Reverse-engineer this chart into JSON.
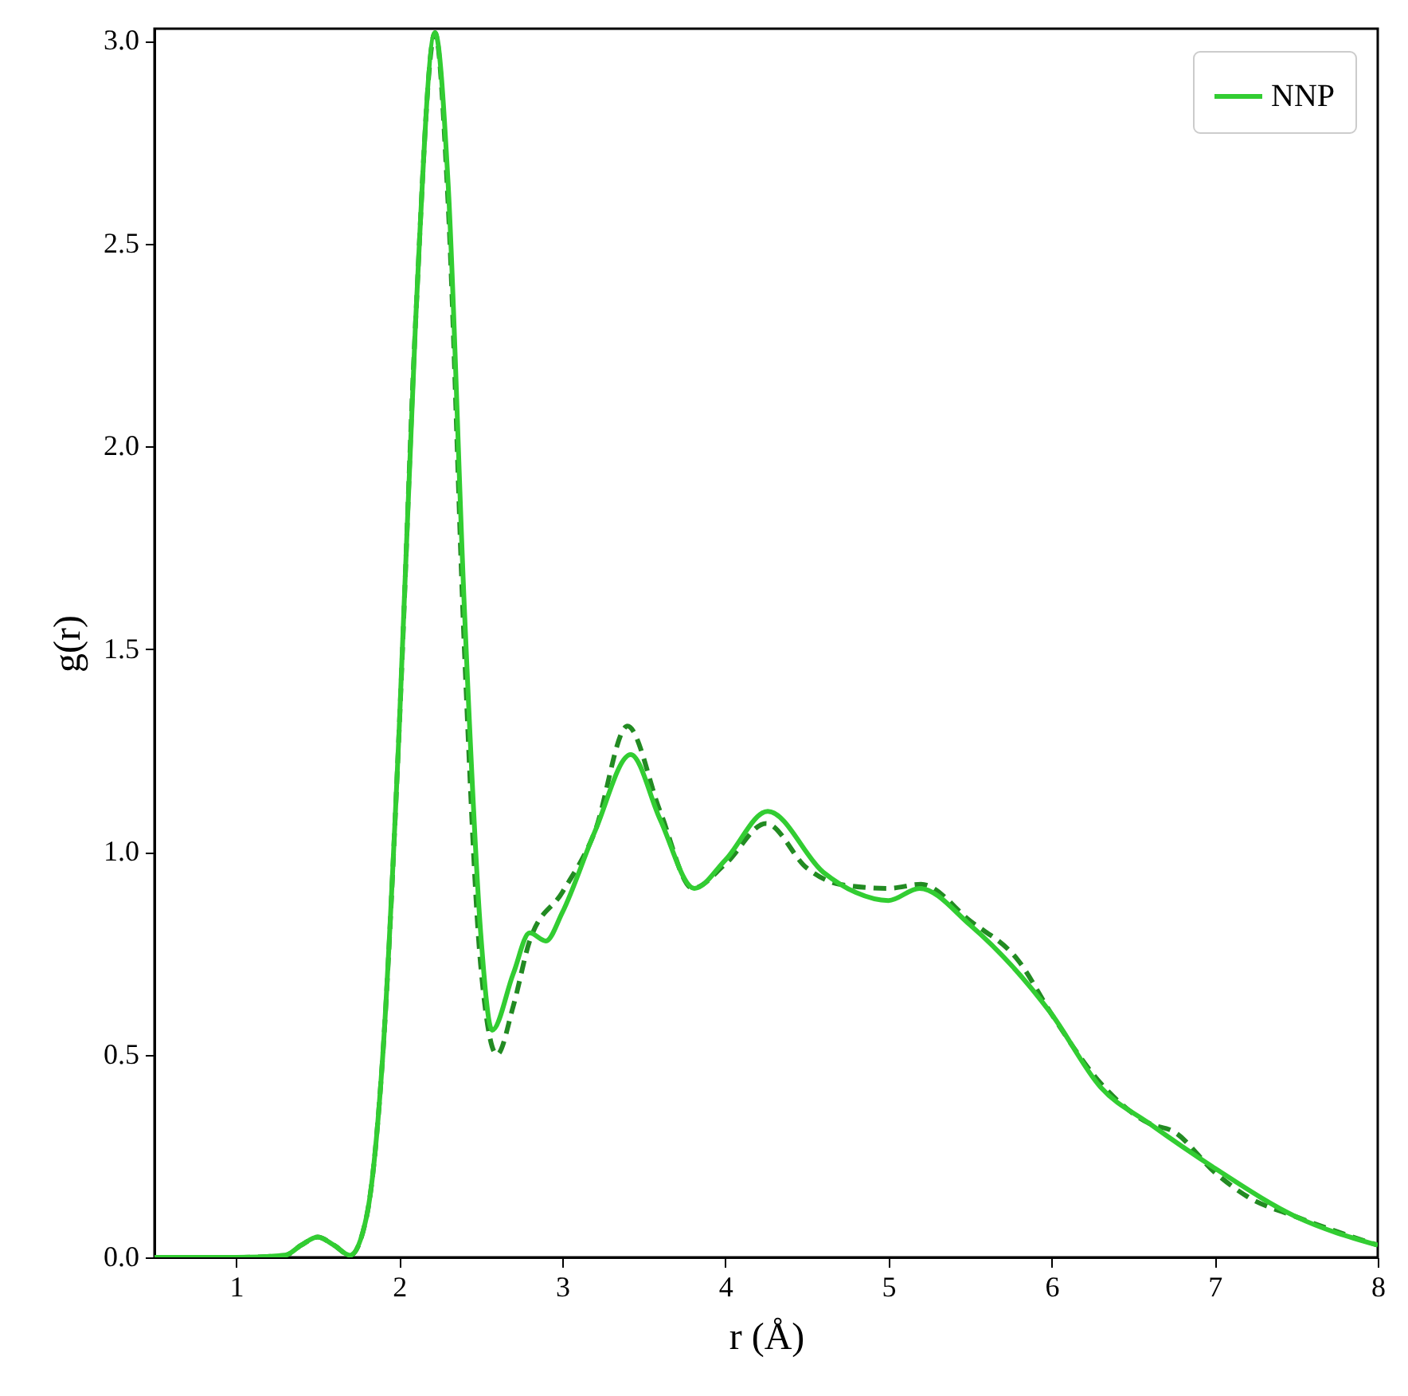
{
  "chart_data": {
    "type": "line",
    "xlabel": "r (Å)",
    "ylabel": "g(r)",
    "xlim": [
      0.5,
      8
    ],
    "ylim": [
      0,
      3.03
    ],
    "xticks": [
      1,
      2,
      3,
      4,
      5,
      6,
      7,
      8
    ],
    "yticks": [
      {
        "value": 0,
        "label": "0.0"
      },
      {
        "value": 0.5,
        "label": "0.5"
      },
      {
        "value": 1,
        "label": "1.0"
      },
      {
        "value": 1.5,
        "label": "1.5"
      },
      {
        "value": 2,
        "label": "2.0"
      },
      {
        "value": 2.5,
        "label": "2.5"
      },
      {
        "value": 3,
        "label": "3.0"
      }
    ],
    "grid": false,
    "legend": "top right",
    "series": [
      {
        "color": "#228b22",
        "line_style": "dashed",
        "x": [
          0.5,
          1.0,
          1.3,
          1.4,
          1.5,
          1.6,
          1.7,
          1.8,
          1.9,
          2.0,
          2.1,
          2.22,
          2.3,
          2.4,
          2.5,
          2.6,
          2.7,
          2.8,
          3.0,
          3.2,
          3.4,
          3.6,
          3.8,
          4.0,
          4.25,
          4.5,
          4.7,
          5.0,
          5.2,
          5.5,
          5.8,
          6.0,
          6.3,
          6.6,
          6.75,
          7.0,
          7.2,
          7.5,
          8.0
        ],
        "values": [
          0,
          0,
          0.005,
          0.03,
          0.05,
          0.03,
          0.005,
          0.1,
          0.5,
          1.3,
          2.3,
          3.02,
          2.6,
          1.5,
          0.72,
          0.5,
          0.62,
          0.78,
          0.9,
          1.05,
          1.31,
          1.1,
          0.91,
          0.97,
          1.07,
          0.96,
          0.92,
          0.91,
          0.92,
          0.83,
          0.73,
          0.6,
          0.43,
          0.33,
          0.31,
          0.21,
          0.15,
          0.1,
          0.03
        ]
      },
      {
        "name": "NNP",
        "color": "#32cd32",
        "line_style": "solid",
        "x": [
          0.5,
          1.0,
          1.3,
          1.4,
          1.5,
          1.6,
          1.7,
          1.8,
          1.9,
          2.0,
          2.1,
          2.22,
          2.3,
          2.4,
          2.5,
          2.57,
          2.7,
          2.8,
          2.9,
          3.0,
          3.2,
          3.42,
          3.6,
          3.81,
          4.0,
          4.26,
          4.6,
          4.8,
          5.0,
          5.19,
          5.5,
          6.0,
          6.3,
          6.6,
          7.0,
          7.5,
          8.0
        ],
        "values": [
          0,
          0,
          0.005,
          0.03,
          0.05,
          0.03,
          0.005,
          0.1,
          0.5,
          1.3,
          2.3,
          3.02,
          2.65,
          1.6,
          0.8,
          0.56,
          0.7,
          0.8,
          0.78,
          0.85,
          1.05,
          1.24,
          1.08,
          0.91,
          0.98,
          1.1,
          0.95,
          0.9,
          0.88,
          0.91,
          0.82,
          0.6,
          0.42,
          0.33,
          0.22,
          0.1,
          0.03
        ]
      }
    ]
  }
}
